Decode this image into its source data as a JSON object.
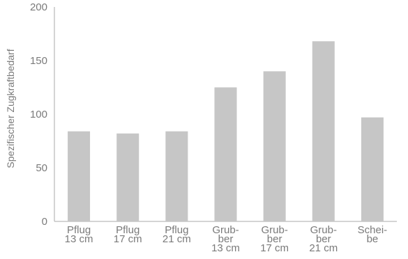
{
  "chart_data": {
    "type": "bar",
    "title": "",
    "xlabel": "",
    "ylabel": "Spezifischer Zugkraftbedarf",
    "ylim": [
      0,
      200
    ],
    "yticks": [
      0,
      50,
      100,
      150,
      200
    ],
    "grid": false,
    "legend": "none",
    "bar_color": "#c6c6c6",
    "axis_color": "#a9a9a9",
    "text_color": "#7a7a7a",
    "categories": [
      [
        "Pflug",
        "13 cm"
      ],
      [
        "Pflug",
        "17 cm"
      ],
      [
        "Pflug",
        "21 cm"
      ],
      [
        "Grub-",
        "ber",
        "13 cm"
      ],
      [
        "Grub-",
        "ber",
        "17 cm"
      ],
      [
        "Grub-",
        "ber",
        "21 cm"
      ],
      [
        "Schei-",
        "be"
      ]
    ],
    "values": [
      84,
      82,
      84,
      125,
      140,
      168,
      97
    ]
  }
}
